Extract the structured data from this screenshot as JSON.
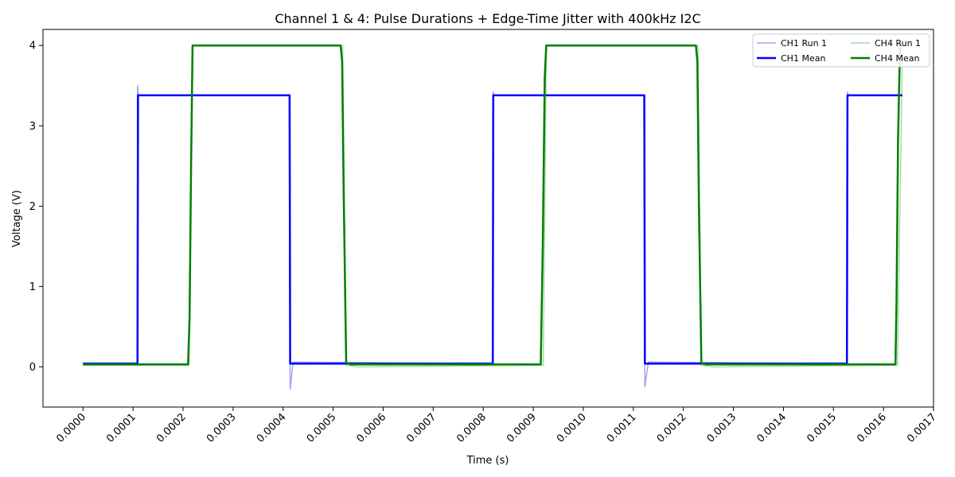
{
  "chart_data": {
    "type": "line",
    "title": "Channel 1 & 4: Pulse Durations + Edge-Time Jitter with 400kHz I2C",
    "xlabel": "Time (s)",
    "ylabel": "Voltage (V)",
    "xlim": [
      -8e-05,
      0.0017
    ],
    "ylim": [
      -0.5,
      4.2
    ],
    "xticks": [
      0,
      0.0001,
      0.0002,
      0.0003,
      0.0004,
      0.0005,
      0.0006,
      0.0007,
      0.0008,
      0.0009,
      0.001,
      0.0011,
      0.0012,
      0.0013,
      0.0014,
      0.0015,
      0.0016,
      0.0017
    ],
    "xtick_labels": [
      "0.0000",
      "0.0001",
      "0.0002",
      "0.0003",
      "0.0004",
      "0.0005",
      "0.0006",
      "0.0007",
      "0.0008",
      "0.0009",
      "0.0010",
      "0.0011",
      "0.0012",
      "0.0013",
      "0.0014",
      "0.0015",
      "0.0016",
      "0.0017"
    ],
    "yticks": [
      0,
      1,
      2,
      3,
      4
    ],
    "ytick_labels": [
      "0",
      "1",
      "2",
      "3",
      "4"
    ],
    "grid": false,
    "legend_position": "top-right",
    "legend_columns": 2,
    "series": [
      {
        "name": "CH1 Run 1",
        "color": "#8c8cf0",
        "style": "light",
        "x": [
          0,
          0.000108,
          0.000109,
          0.000111,
          0.000412,
          0.000414,
          0.00042,
          0.000819,
          0.00082,
          0.000822,
          0.001121,
          0.001123,
          0.00113,
          0.001527,
          0.001528,
          0.00153,
          0.001638
        ],
        "y": [
          0.04,
          0.04,
          3.5,
          3.38,
          3.38,
          -0.28,
          0.06,
          0.04,
          3.42,
          3.38,
          3.38,
          -0.25,
          0.06,
          0.04,
          3.42,
          3.38,
          3.38
        ]
      },
      {
        "name": "CH1 Mean",
        "color": "#0000ff",
        "style": "bold",
        "x": [
          0,
          0.000109,
          0.00011,
          0.000413,
          0.000414,
          0.000819,
          0.00082,
          0.001122,
          0.001123,
          0.001527,
          0.001528,
          0.001638
        ],
        "y": [
          0.04,
          0.04,
          3.38,
          3.38,
          0.04,
          0.04,
          3.38,
          3.38,
          0.04,
          0.04,
          3.38,
          3.38
        ]
      },
      {
        "name": "CH4 Run 1",
        "color": "#8fd18f",
        "style": "light",
        "x": [
          0,
          0.000212,
          0.000218,
          0.000519,
          0.000526,
          0.00055,
          0.00092,
          0.000926,
          0.001229,
          0.001236,
          0.00126,
          0.001628,
          0.001638
        ],
        "y": [
          0.02,
          0.02,
          4.0,
          4.0,
          0.02,
          0.0,
          0.02,
          4.0,
          4.0,
          0.02,
          0.0,
          0.02,
          4.0
        ]
      },
      {
        "name": "CH4 Mean",
        "color": "#008000",
        "style": "bold",
        "x": [
          0,
          0.00021,
          0.000213,
          0.000216,
          0.000219,
          0.000515,
          0.000518,
          0.000521,
          0.000526,
          0.000535,
          0.000915,
          0.000919,
          0.000923,
          0.000926,
          0.001225,
          0.001228,
          0.001231,
          0.001236,
          0.001245,
          0.001624,
          0.001626,
          0.001629,
          0.001633
        ],
        "y": [
          0.03,
          0.03,
          0.6,
          2.5,
          4.0,
          4.0,
          3.8,
          2.2,
          0.05,
          0.03,
          0.03,
          1.5,
          3.6,
          4.0,
          4.0,
          3.8,
          2.0,
          0.05,
          0.03,
          0.03,
          0.8,
          2.8,
          4.0
        ]
      }
    ]
  }
}
